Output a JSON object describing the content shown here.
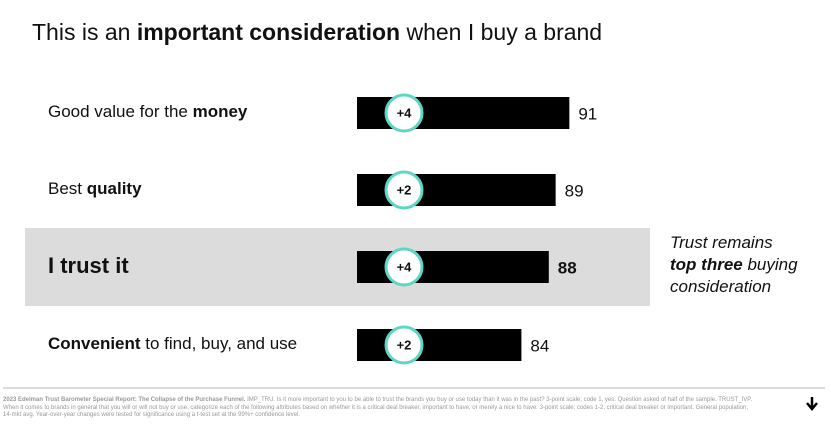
{
  "chart_data": {
    "type": "bar",
    "title": [
      {
        "text": "This is an ",
        "bold": false
      },
      {
        "text": "important consideration",
        "bold": true
      },
      {
        "text": " when I buy a brand",
        "bold": false
      }
    ],
    "categories": [
      [
        {
          "text": "Good value for the ",
          "bold": false
        },
        {
          "text": "money",
          "bold": true
        }
      ],
      [
        {
          "text": "Best ",
          "bold": false
        },
        {
          "text": "quality",
          "bold": true
        }
      ],
      [
        {
          "text": "I trust it",
          "bold": true
        }
      ],
      [
        {
          "text": "Convenient",
          "bold": true
        },
        {
          "text": " to find, buy, and use",
          "bold": false
        }
      ]
    ],
    "values": [
      91,
      89,
      88,
      84
    ],
    "changes": [
      4,
      2,
      4,
      2
    ],
    "change_labels": [
      "+4",
      "+2",
      "+4",
      "+2"
    ],
    "xlim": [
      60,
      100
    ],
    "color": "#000000",
    "change_color": "#5fd6c5",
    "highlight": 2,
    "annotation": [
      [
        {
          "text": "Trust remains",
          "bold": false
        }
      ],
      [
        {
          "text": "top three",
          "bold": true
        },
        {
          "text": " buying",
          "bold": false
        }
      ],
      [
        {
          "text": "consideration",
          "bold": false
        }
      ]
    ],
    "footnote": [
      {
        "text": "2023 Edelman Trust Barometer Special Report: The Collapse of the Purchase Funnel.",
        "bold": true
      },
      {
        "text": " IMP_TRU. Is it more important to you to be able to trust the brands you buy or use today than it was in the past? 3-point scale; code 1, yes. Question asked of half of the sample. TRUST_IVP. When it comes to brands in general that you will or will not buy or use, categorize each of the following attributes based on whether it is a critical deal breaker, important to have, or merely a nice to have. 3-point scale; codes 1-2, critical deal breaker or important. General population, 14-mkt avg. Year-over-year changes were tested for significance using a t-test set at the 99%+ confidence level.",
        "bold": false
      }
    ]
  }
}
